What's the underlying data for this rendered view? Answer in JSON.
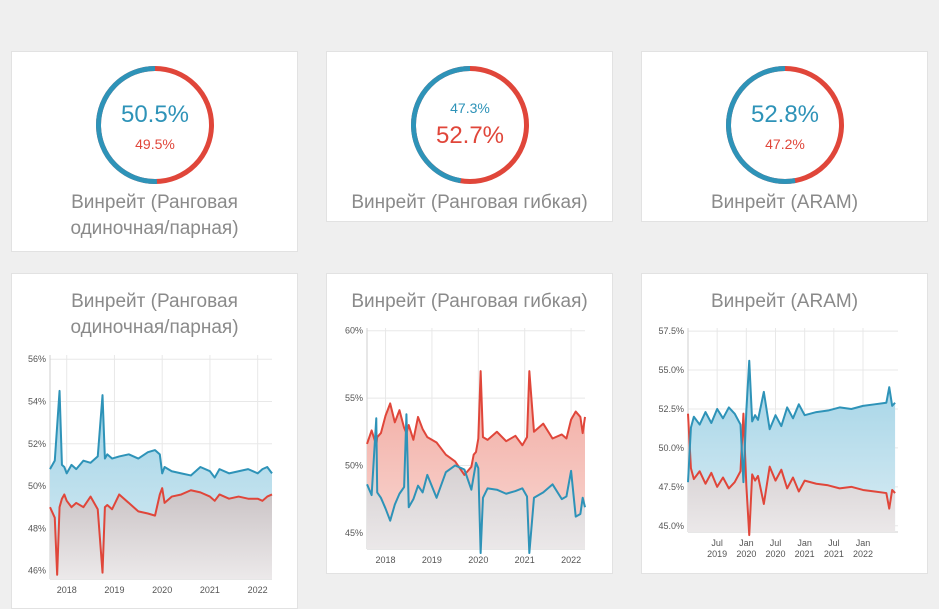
{
  "colors": {
    "blue": "#2e93b8",
    "red": "#e0463a"
  },
  "donuts": [
    {
      "top": "50.5%",
      "bottom": "49.5%",
      "blue_fraction": 0.505,
      "top_color": "blue",
      "big": "top",
      "caption_lines": [
        "Винрейт (Ранговая",
        "одиночная/парная)"
      ]
    },
    {
      "top": "47.3%",
      "bottom": "52.7%",
      "blue_fraction": 0.473,
      "top_color": "blue",
      "big": "bottom",
      "caption_lines": [
        "Винрейт (Ранговая гибкая)"
      ]
    },
    {
      "top": "52.8%",
      "bottom": "47.2%",
      "blue_fraction": 0.528,
      "top_color": "blue",
      "big": "top",
      "caption_lines": [
        "Винрейт (ARAM)"
      ]
    }
  ],
  "chart_data": [
    {
      "type": "area",
      "title_lines": [
        "Винрейт (Ранговая",
        "одиночная/парная)"
      ],
      "ylim": [
        45.6,
        56.2
      ],
      "yticks": [
        "56%",
        "54%",
        "52%",
        "50%",
        "48%",
        "46%"
      ],
      "ytick_values": [
        56,
        54,
        52,
        50,
        48,
        46
      ],
      "xlim": [
        2017.65,
        2022.3
      ],
      "xticks": [
        {
          "label": "2018",
          "value": 2018.0
        },
        {
          "label": "2019",
          "value": 2019.0
        },
        {
          "label": "2020",
          "value": 2020.0
        },
        {
          "label": "2021",
          "value": 2021.0
        },
        {
          "label": "2022",
          "value": 2022.0
        }
      ],
      "series": [
        {
          "color": "blue",
          "x": [
            2017.65,
            2017.75,
            2017.85,
            2017.9,
            2017.95,
            2018.0,
            2018.1,
            2018.2,
            2018.35,
            2018.5,
            2018.65,
            2018.75,
            2018.8,
            2018.85,
            2018.95,
            2019.1,
            2019.3,
            2019.5,
            2019.7,
            2019.85,
            2019.95,
            2020.0,
            2020.05,
            2020.2,
            2020.4,
            2020.6,
            2020.8,
            2021.0,
            2021.1,
            2021.2,
            2021.4,
            2021.6,
            2021.8,
            2022.0,
            2022.1,
            2022.2,
            2022.3
          ],
          "values": [
            50.8,
            51.2,
            54.5,
            51.0,
            50.9,
            50.6,
            51.0,
            50.8,
            51.2,
            51.1,
            51.4,
            54.3,
            51.3,
            51.5,
            51.3,
            51.4,
            51.5,
            51.3,
            51.6,
            51.7,
            51.5,
            50.6,
            50.9,
            50.7,
            50.6,
            50.5,
            50.9,
            50.7,
            50.4,
            50.8,
            50.6,
            50.7,
            50.8,
            50.6,
            50.8,
            50.9,
            50.6
          ]
        },
        {
          "color": "red",
          "x": [
            2017.65,
            2017.75,
            2017.8,
            2017.85,
            2017.9,
            2017.95,
            2018.0,
            2018.1,
            2018.2,
            2018.35,
            2018.5,
            2018.65,
            2018.75,
            2018.8,
            2018.85,
            2018.95,
            2019.1,
            2019.3,
            2019.5,
            2019.7,
            2019.85,
            2019.95,
            2020.0,
            2020.05,
            2020.2,
            2020.4,
            2020.6,
            2020.8,
            2021.0,
            2021.1,
            2021.2,
            2021.4,
            2021.6,
            2021.8,
            2022.0,
            2022.1,
            2022.2,
            2022.3
          ],
          "values": [
            49.0,
            48.5,
            45.8,
            49.0,
            49.4,
            49.6,
            49.3,
            49.0,
            49.2,
            49.0,
            49.5,
            48.9,
            45.9,
            49.0,
            49.1,
            48.9,
            49.6,
            49.2,
            48.8,
            48.7,
            48.6,
            49.6,
            49.9,
            49.2,
            49.5,
            49.6,
            49.8,
            49.7,
            49.5,
            49.3,
            49.6,
            49.4,
            49.5,
            49.4,
            49.4,
            49.3,
            49.5,
            49.6
          ]
        }
      ]
    },
    {
      "type": "area",
      "title_lines": [
        "Винрейт (Ранговая гибкая)"
      ],
      "ylim": [
        43.8,
        60.2
      ],
      "yticks": [
        "60%",
        "55%",
        "50%",
        "45%"
      ],
      "ytick_values": [
        60,
        55,
        50,
        45
      ],
      "xlim": [
        2017.6,
        2022.3
      ],
      "xticks": [
        {
          "label": "2018",
          "value": 2018.0
        },
        {
          "label": "2019",
          "value": 2019.0
        },
        {
          "label": "2020",
          "value": 2020.0
        },
        {
          "label": "2021",
          "value": 2021.0
        },
        {
          "label": "2022",
          "value": 2022.0
        }
      ],
      "series": [
        {
          "color": "blue",
          "x": [
            2017.6,
            2017.7,
            2017.8,
            2017.82,
            2017.9,
            2018.0,
            2018.1,
            2018.2,
            2018.3,
            2018.4,
            2018.45,
            2018.5,
            2018.6,
            2018.7,
            2018.8,
            2018.9,
            2019.1,
            2019.3,
            2019.5,
            2019.7,
            2019.85,
            2019.9,
            2019.95,
            2020.0,
            2020.05,
            2020.1,
            2020.2,
            2020.4,
            2020.6,
            2020.8,
            2020.95,
            2021.05,
            2021.1,
            2021.2,
            2021.4,
            2021.6,
            2021.8,
            2021.9,
            2022.0,
            2022.1,
            2022.2,
            2022.25,
            2022.3
          ],
          "values": [
            48.6,
            47.8,
            53.5,
            48.0,
            47.6,
            46.8,
            45.9,
            47.1,
            47.9,
            48.4,
            53.8,
            46.9,
            47.5,
            48.5,
            48.0,
            49.3,
            47.6,
            49.5,
            50.0,
            49.7,
            48.2,
            49.2,
            50.2,
            49.8,
            43.5,
            47.6,
            48.3,
            48.2,
            47.9,
            48.1,
            48.3,
            47.7,
            43.5,
            47.6,
            48.0,
            48.6,
            47.5,
            47.7,
            49.6,
            46.2,
            46.4,
            47.6,
            46.9
          ]
        },
        {
          "color": "red",
          "x": [
            2017.6,
            2017.7,
            2017.8,
            2017.82,
            2017.9,
            2018.0,
            2018.1,
            2018.2,
            2018.3,
            2018.4,
            2018.45,
            2018.5,
            2018.6,
            2018.7,
            2018.8,
            2018.9,
            2019.1,
            2019.3,
            2019.5,
            2019.7,
            2019.85,
            2019.9,
            2019.95,
            2020.0,
            2020.05,
            2020.1,
            2020.2,
            2020.4,
            2020.6,
            2020.8,
            2020.95,
            2021.05,
            2021.1,
            2021.2,
            2021.4,
            2021.6,
            2021.8,
            2021.9,
            2022.0,
            2022.1,
            2022.2,
            2022.25,
            2022.3
          ],
          "values": [
            51.6,
            52.6,
            51.5,
            52.1,
            52.4,
            53.7,
            54.6,
            53.2,
            54.1,
            52.8,
            52.4,
            53.0,
            51.9,
            53.6,
            52.7,
            52.1,
            51.7,
            50.8,
            50.3,
            49.3,
            49.9,
            50.8,
            51.0,
            52.0,
            57.0,
            52.1,
            51.9,
            52.5,
            51.8,
            52.2,
            51.5,
            52.1,
            57.0,
            52.5,
            53.1,
            52.0,
            52.3,
            52.0,
            53.4,
            54.0,
            53.6,
            52.4,
            53.6
          ]
        }
      ]
    },
    {
      "type": "area",
      "title_lines": [
        "Винрейт (ARAM)"
      ],
      "ylim": [
        44.6,
        57.7
      ],
      "yticks": [
        "57.5%",
        "55.0%",
        "52.5%",
        "50.0%",
        "47.5%",
        "45.0%"
      ],
      "ytick_values": [
        57.5,
        55.0,
        52.5,
        50.0,
        47.5,
        45.0
      ],
      "xlim": [
        2019.0,
        2022.6
      ],
      "xticks": [
        {
          "label": "Jul",
          "sub": "2019",
          "value": 2019.5
        },
        {
          "label": "Jan",
          "sub": "2020",
          "value": 2020.0
        },
        {
          "label": "Jul",
          "sub": "2020",
          "value": 2020.5
        },
        {
          "label": "Jan",
          "sub": "2021",
          "value": 2021.0
        },
        {
          "label": "Jul",
          "sub": "2021",
          "value": 2021.5
        },
        {
          "label": "Jan",
          "sub": "2022",
          "value": 2022.0
        }
      ],
      "series": [
        {
          "color": "blue",
          "x": [
            2019.0,
            2019.05,
            2019.1,
            2019.2,
            2019.3,
            2019.4,
            2019.5,
            2019.6,
            2019.7,
            2019.8,
            2019.9,
            2019.95,
            2020.0,
            2020.05,
            2020.1,
            2020.15,
            2020.2,
            2020.3,
            2020.4,
            2020.5,
            2020.6,
            2020.7,
            2020.8,
            2020.9,
            2021.0,
            2021.2,
            2021.4,
            2021.6,
            2021.8,
            2022.0,
            2022.2,
            2022.4,
            2022.45,
            2022.5,
            2022.55
          ],
          "values": [
            47.8,
            51.3,
            52.0,
            51.5,
            52.3,
            51.6,
            52.5,
            51.9,
            52.6,
            52.2,
            51.5,
            47.8,
            52.4,
            55.6,
            51.7,
            52.1,
            51.8,
            53.6,
            51.2,
            52.1,
            51.4,
            52.6,
            51.9,
            52.8,
            52.1,
            52.3,
            52.4,
            52.6,
            52.5,
            52.7,
            52.8,
            52.9,
            53.9,
            52.7,
            52.9
          ]
        },
        {
          "color": "red",
          "x": [
            2019.0,
            2019.05,
            2019.1,
            2019.2,
            2019.3,
            2019.4,
            2019.5,
            2019.6,
            2019.7,
            2019.8,
            2019.9,
            2019.95,
            2020.0,
            2020.05,
            2020.1,
            2020.15,
            2020.2,
            2020.3,
            2020.4,
            2020.5,
            2020.6,
            2020.7,
            2020.8,
            2020.9,
            2021.0,
            2021.2,
            2021.4,
            2021.6,
            2021.8,
            2022.0,
            2022.2,
            2022.4,
            2022.45,
            2022.5,
            2022.55
          ],
          "values": [
            52.2,
            48.7,
            48.0,
            48.5,
            47.7,
            48.4,
            47.5,
            48.1,
            47.4,
            47.8,
            48.5,
            52.2,
            47.6,
            44.4,
            48.3,
            47.9,
            48.2,
            46.4,
            48.8,
            47.9,
            48.6,
            47.4,
            48.1,
            47.2,
            47.9,
            47.7,
            47.6,
            47.4,
            47.5,
            47.3,
            47.2,
            47.1,
            46.1,
            47.3,
            47.1
          ]
        }
      ]
    }
  ]
}
